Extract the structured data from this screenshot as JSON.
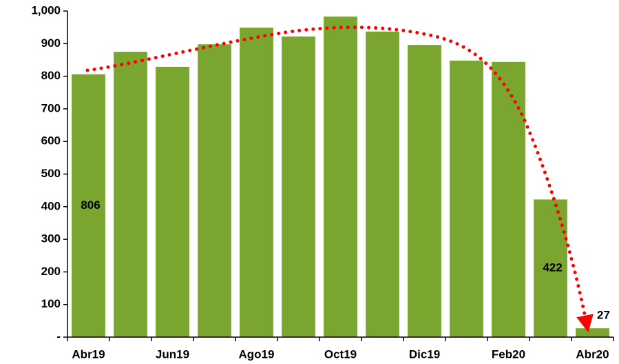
{
  "chart_data": {
    "type": "bar",
    "categories": [
      "Abr19",
      null,
      "Jun19",
      null,
      "Ago19",
      null,
      "Oct19",
      null,
      "Dic19",
      null,
      "Feb20",
      null,
      "Abr20"
    ],
    "values": [
      806,
      875,
      829,
      898,
      949,
      922,
      983,
      937,
      896,
      848,
      844,
      422,
      27
    ],
    "value_labels": [
      "806",
      null,
      null,
      null,
      null,
      null,
      null,
      null,
      null,
      null,
      null,
      "422",
      "27"
    ],
    "color": "#7aa52e",
    "ylim": [
      0,
      1000
    ],
    "yticks": [
      {
        "value": 0,
        "label": "-"
      },
      100,
      200,
      300,
      400,
      500,
      600,
      700,
      800,
      900,
      {
        "value": 1000,
        "label": "1,000"
      }
    ]
  }
}
